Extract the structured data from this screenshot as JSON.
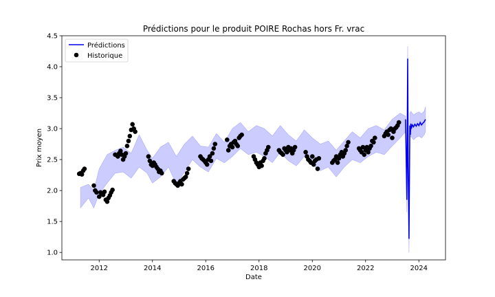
{
  "chart_data": {
    "type": "line",
    "title": "Prédictions pour le produit POIRE Rochas hors Fr. vrac",
    "xlabel": "Date",
    "ylabel": "Prix moyen",
    "xlim": [
      2010.6,
      2025.0
    ],
    "ylim": [
      0.88,
      4.5
    ],
    "xticks": [
      2012,
      2014,
      2016,
      2018,
      2020,
      2022,
      2024
    ],
    "xtick_labels": [
      "2012",
      "2014",
      "2016",
      "2018",
      "2020",
      "2022",
      "2024"
    ],
    "yticks": [
      1.0,
      1.5,
      2.0,
      2.5,
      3.0,
      3.5,
      4.0,
      4.5
    ],
    "ytick_labels": [
      "1.0",
      "1.5",
      "2.0",
      "2.5",
      "3.0",
      "3.5",
      "4.0",
      "4.5"
    ],
    "grid": false,
    "legend": {
      "position": "top-left",
      "entries": [
        "Prédictions",
        "Historique"
      ]
    },
    "colors": {
      "prediction_line": "#0000ee",
      "interval_fill": "#ccccff",
      "interval_edge": "#aaaaff",
      "historique": "#000000"
    },
    "series": [
      {
        "name": "Prédictions",
        "kind": "line",
        "x": [
          2023.5,
          2023.55,
          2023.58,
          2023.6,
          2023.63,
          2023.66,
          2023.68,
          2023.7,
          2023.73,
          2023.76,
          2023.8,
          2023.85,
          2023.9,
          2023.95,
          2024.0,
          2024.05,
          2024.1,
          2024.15,
          2024.2,
          2024.25
        ],
        "y": [
          3.15,
          1.85,
          4.13,
          2.4,
          1.22,
          3.05,
          2.9,
          3.08,
          3.02,
          3.06,
          3.03,
          3.07,
          3.04,
          3.08,
          3.05,
          3.1,
          3.06,
          3.09,
          3.11,
          3.15
        ]
      },
      {
        "name": "",
        "kind": "interval",
        "x": [
          2011.3,
          2011.6,
          2011.8,
          2012.0,
          2012.3,
          2012.6,
          2012.9,
          2013.2,
          2013.5,
          2013.8,
          2014.0,
          2014.3,
          2014.6,
          2014.9,
          2015.2,
          2015.5,
          2015.8,
          2016.1,
          2016.4,
          2016.7,
          2017.0,
          2017.3,
          2017.6,
          2017.9,
          2018.2,
          2018.5,
          2018.8,
          2019.1,
          2019.4,
          2019.7,
          2020.0,
          2020.3,
          2020.6,
          2020.9,
          2021.2,
          2021.5,
          2021.8,
          2022.1,
          2022.4,
          2022.7,
          2023.0,
          2023.3,
          2023.5,
          2023.55,
          2023.58,
          2023.6,
          2023.63,
          2023.66,
          2023.7,
          2023.8,
          2023.9,
          2024.0,
          2024.1,
          2024.2,
          2024.25
        ],
        "upper": [
          2.05,
          2.1,
          2.0,
          2.35,
          2.58,
          2.65,
          2.7,
          2.6,
          2.9,
          2.65,
          2.52,
          2.7,
          2.78,
          2.55,
          2.75,
          2.88,
          2.72,
          2.7,
          2.92,
          2.78,
          3.0,
          3.1,
          2.95,
          3.05,
          3.0,
          2.88,
          3.05,
          2.9,
          2.8,
          2.98,
          2.85,
          2.75,
          2.8,
          2.65,
          2.8,
          2.95,
          2.85,
          3.0,
          3.05,
          2.98,
          3.15,
          3.25,
          3.2,
          2.0,
          4.33,
          2.6,
          1.4,
          3.25,
          3.28,
          3.22,
          3.25,
          3.27,
          3.24,
          3.28,
          3.35
        ],
        "lower": [
          1.72,
          1.88,
          1.72,
          1.95,
          2.12,
          2.28,
          2.3,
          2.2,
          2.38,
          2.28,
          2.12,
          2.22,
          2.38,
          2.1,
          2.3,
          2.5,
          2.38,
          2.3,
          2.52,
          2.45,
          2.55,
          2.68,
          2.58,
          2.62,
          2.55,
          2.45,
          2.62,
          2.48,
          2.4,
          2.55,
          2.42,
          2.32,
          2.38,
          2.22,
          2.38,
          2.5,
          2.45,
          2.55,
          2.62,
          2.58,
          2.72,
          2.85,
          2.95,
          1.65,
          3.92,
          2.2,
          1.0,
          2.85,
          2.88,
          2.82,
          2.86,
          2.88,
          2.85,
          2.9,
          2.95
        ]
      },
      {
        "name": "Historique",
        "kind": "scatter",
        "x": [
          2011.25,
          2011.3,
          2011.35,
          2011.4,
          2011.45,
          2011.8,
          2011.85,
          2011.9,
          2012.0,
          2012.05,
          2012.1,
          2012.15,
          2012.2,
          2012.25,
          2012.3,
          2012.35,
          2012.4,
          2012.45,
          2012.5,
          2012.6,
          2012.7,
          2012.75,
          2012.8,
          2012.85,
          2012.9,
          2012.95,
          2013.0,
          2013.05,
          2013.1,
          2013.15,
          2013.2,
          2013.25,
          2013.3,
          2013.35,
          2013.85,
          2013.9,
          2013.95,
          2014.0,
          2014.05,
          2014.1,
          2014.15,
          2014.2,
          2014.25,
          2014.3,
          2014.35,
          2014.8,
          2014.85,
          2014.9,
          2014.95,
          2015.0,
          2015.05,
          2015.1,
          2015.15,
          2015.2,
          2015.25,
          2015.3,
          2015.35,
          2015.8,
          2015.85,
          2015.9,
          2015.95,
          2016.0,
          2016.05,
          2016.1,
          2016.15,
          2016.2,
          2016.25,
          2016.3,
          2016.35,
          2016.8,
          2016.85,
          2016.9,
          2016.95,
          2017.0,
          2017.05,
          2017.1,
          2017.15,
          2017.2,
          2017.25,
          2017.3,
          2017.35,
          2017.8,
          2017.85,
          2017.9,
          2017.95,
          2018.0,
          2018.05,
          2018.1,
          2018.15,
          2018.2,
          2018.25,
          2018.3,
          2018.35,
          2018.75,
          2018.8,
          2018.85,
          2018.9,
          2018.95,
          2019.0,
          2019.05,
          2019.1,
          2019.15,
          2019.2,
          2019.25,
          2019.3,
          2019.35,
          2019.75,
          2019.8,
          2019.85,
          2019.9,
          2019.95,
          2020.0,
          2020.05,
          2020.1,
          2020.15,
          2020.2,
          2020.25,
          2020.75,
          2020.8,
          2020.85,
          2020.9,
          2020.95,
          2021.0,
          2021.05,
          2021.1,
          2021.15,
          2021.2,
          2021.25,
          2021.3,
          2021.35,
          2021.75,
          2021.8,
          2021.85,
          2021.9,
          2021.95,
          2022.0,
          2022.05,
          2022.1,
          2022.15,
          2022.2,
          2022.25,
          2022.3,
          2022.35,
          2022.7,
          2022.75,
          2022.8,
          2022.85,
          2022.9,
          2022.95,
          2023.0,
          2023.05,
          2023.1,
          2023.15,
          2023.2,
          2023.25
        ],
        "y": [
          2.27,
          2.28,
          2.26,
          2.32,
          2.35,
          2.08,
          2.0,
          1.97,
          1.9,
          1.97,
          1.95,
          1.93,
          1.98,
          1.85,
          1.82,
          1.88,
          1.92,
          1.97,
          2.01,
          2.58,
          2.55,
          2.6,
          2.64,
          2.58,
          2.5,
          2.55,
          2.6,
          2.72,
          2.8,
          2.88,
          2.98,
          3.07,
          3.0,
          2.95,
          2.55,
          2.48,
          2.42,
          2.4,
          2.45,
          2.42,
          2.38,
          2.35,
          2.3,
          2.32,
          2.28,
          2.15,
          2.12,
          2.1,
          2.08,
          2.12,
          2.15,
          2.1,
          2.18,
          2.2,
          2.22,
          2.28,
          2.35,
          2.55,
          2.52,
          2.5,
          2.48,
          2.45,
          2.42,
          2.5,
          2.55,
          2.48,
          2.6,
          2.68,
          2.75,
          2.82,
          2.65,
          2.72,
          2.75,
          2.7,
          2.78,
          2.8,
          2.75,
          2.72,
          2.85,
          2.88,
          2.9,
          2.55,
          2.5,
          2.45,
          2.42,
          2.38,
          2.45,
          2.4,
          2.48,
          2.52,
          2.6,
          2.65,
          2.7,
          2.65,
          2.62,
          2.6,
          2.58,
          2.68,
          2.65,
          2.62,
          2.7,
          2.65,
          2.68,
          2.6,
          2.65,
          2.7,
          2.62,
          2.55,
          2.5,
          2.48,
          2.45,
          2.55,
          2.42,
          2.48,
          2.5,
          2.35,
          2.52,
          2.45,
          2.48,
          2.5,
          2.55,
          2.45,
          2.52,
          2.58,
          2.62,
          2.55,
          2.6,
          2.65,
          2.72,
          2.78,
          2.68,
          2.65,
          2.62,
          2.7,
          2.58,
          2.65,
          2.7,
          2.62,
          2.68,
          2.72,
          2.8,
          2.78,
          2.85,
          2.88,
          2.92,
          2.95,
          2.9,
          2.98,
          3.0,
          2.85,
          2.95,
          3.0,
          3.02,
          3.05,
          3.1
        ]
      }
    ]
  }
}
